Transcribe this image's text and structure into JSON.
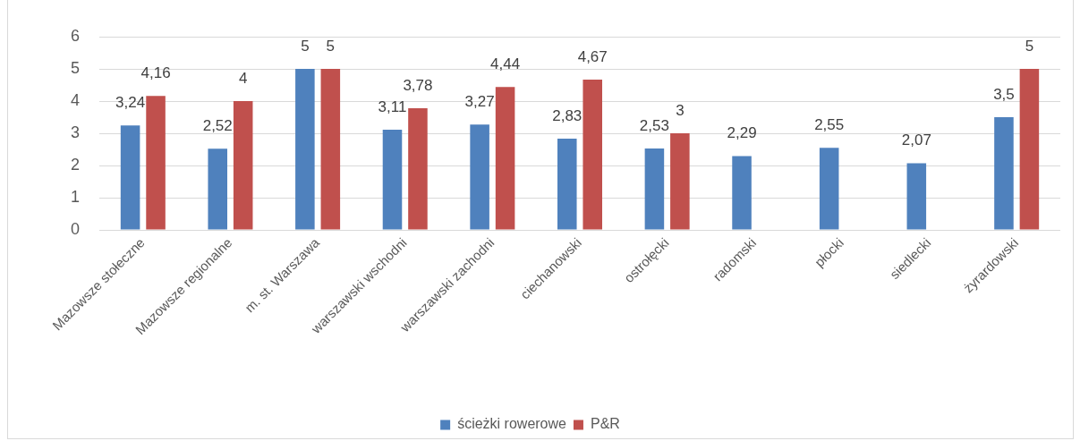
{
  "chart_data": {
    "type": "bar",
    "categories": [
      "Mazowsze stołeczne",
      "Mazowsze regionalne",
      "m. st. Warszawa",
      "warszawski wschodni",
      "warszawski zachodni",
      "ciechanowski",
      "ostrołęcki",
      "radomski",
      "płocki",
      "siedlecki",
      "żyrardowski"
    ],
    "series": [
      {
        "name": "ścieżki rowerowe",
        "color": "#4f81bd",
        "values": [
          3.24,
          2.52,
          5,
          3.11,
          3.27,
          2.83,
          2.53,
          2.29,
          2.55,
          2.07,
          3.5
        ],
        "value_labels": [
          "3,24",
          "2,52",
          "5",
          "3,11",
          "3,27",
          "2,83",
          "2,53",
          "2,29",
          "2,55",
          "2,07",
          "3,5"
        ]
      },
      {
        "name": "P&R",
        "color": "#c0504d",
        "values": [
          4.16,
          4,
          5,
          3.78,
          4.44,
          4.67,
          3,
          null,
          null,
          null,
          5
        ],
        "value_labels": [
          "4,16",
          "4",
          "5",
          "3,78",
          "4,44",
          "4,67",
          "3",
          null,
          null,
          null,
          "5"
        ]
      }
    ],
    "ylim": [
      0,
      6
    ],
    "yticks": [
      0,
      1,
      2,
      3,
      4,
      5,
      6
    ],
    "grid": "y",
    "legend": "bottom"
  }
}
